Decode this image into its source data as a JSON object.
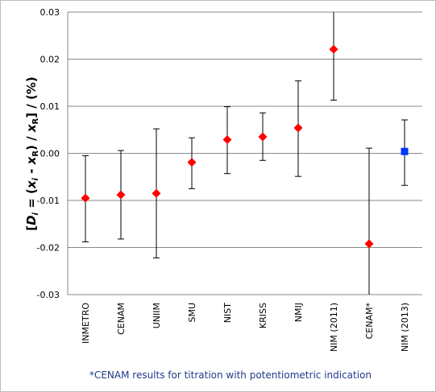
{
  "chart_data": {
    "type": "scatter",
    "ylabel_parts": {
      "open": "[",
      "d": "D",
      "i1": "i",
      "eq": " = (",
      "x1": "x",
      "i2": "i",
      "minus": " - ",
      "x2": "x",
      "r1": "R",
      "mid": ") / ",
      "x3": "x",
      "r2": "R",
      "close": "] / (%)"
    },
    "ylim": [
      -0.03,
      0.03
    ],
    "yticks": [
      0.03,
      0.02,
      0.01,
      0.0,
      -0.01,
      -0.02,
      -0.03
    ],
    "ytick_labels": [
      "0.03",
      "0.02",
      "0.01",
      "0.00",
      "-0.01",
      "-0.02",
      "-0.03"
    ],
    "grid": true,
    "categories": [
      "INMETRO",
      "CENAM",
      "UNIIM",
      "SMU",
      "NIST",
      "KRISS",
      "NMIJ",
      "NIM (2011)",
      "CENAM*",
      "NIM (2013)"
    ],
    "values": [
      -0.0095,
      -0.0088,
      -0.0085,
      -0.0019,
      0.0029,
      0.0035,
      0.0054,
      0.0221,
      -0.0192,
      0.0004
    ],
    "err_low": [
      -0.0188,
      -0.0182,
      -0.0222,
      -0.0075,
      -0.0043,
      -0.0015,
      -0.0049,
      0.0113,
      -0.0305,
      -0.0068
    ],
    "err_high": [
      -0.0005,
      0.0006,
      0.0052,
      0.0033,
      0.0099,
      0.0086,
      0.0154,
      0.0302,
      0.0011,
      0.0071
    ],
    "markers": [
      "diamond",
      "diamond",
      "diamond",
      "diamond",
      "diamond",
      "diamond",
      "diamond",
      "diamond",
      "diamond",
      "square"
    ],
    "colors": [
      "#ff0000",
      "#ff0000",
      "#ff0000",
      "#ff0000",
      "#ff0000",
      "#ff0000",
      "#ff0000",
      "#ff0000",
      "#ff0000",
      "#0033ff"
    ],
    "annotation": "*CENAM results for titration with potentiometric indication"
  }
}
